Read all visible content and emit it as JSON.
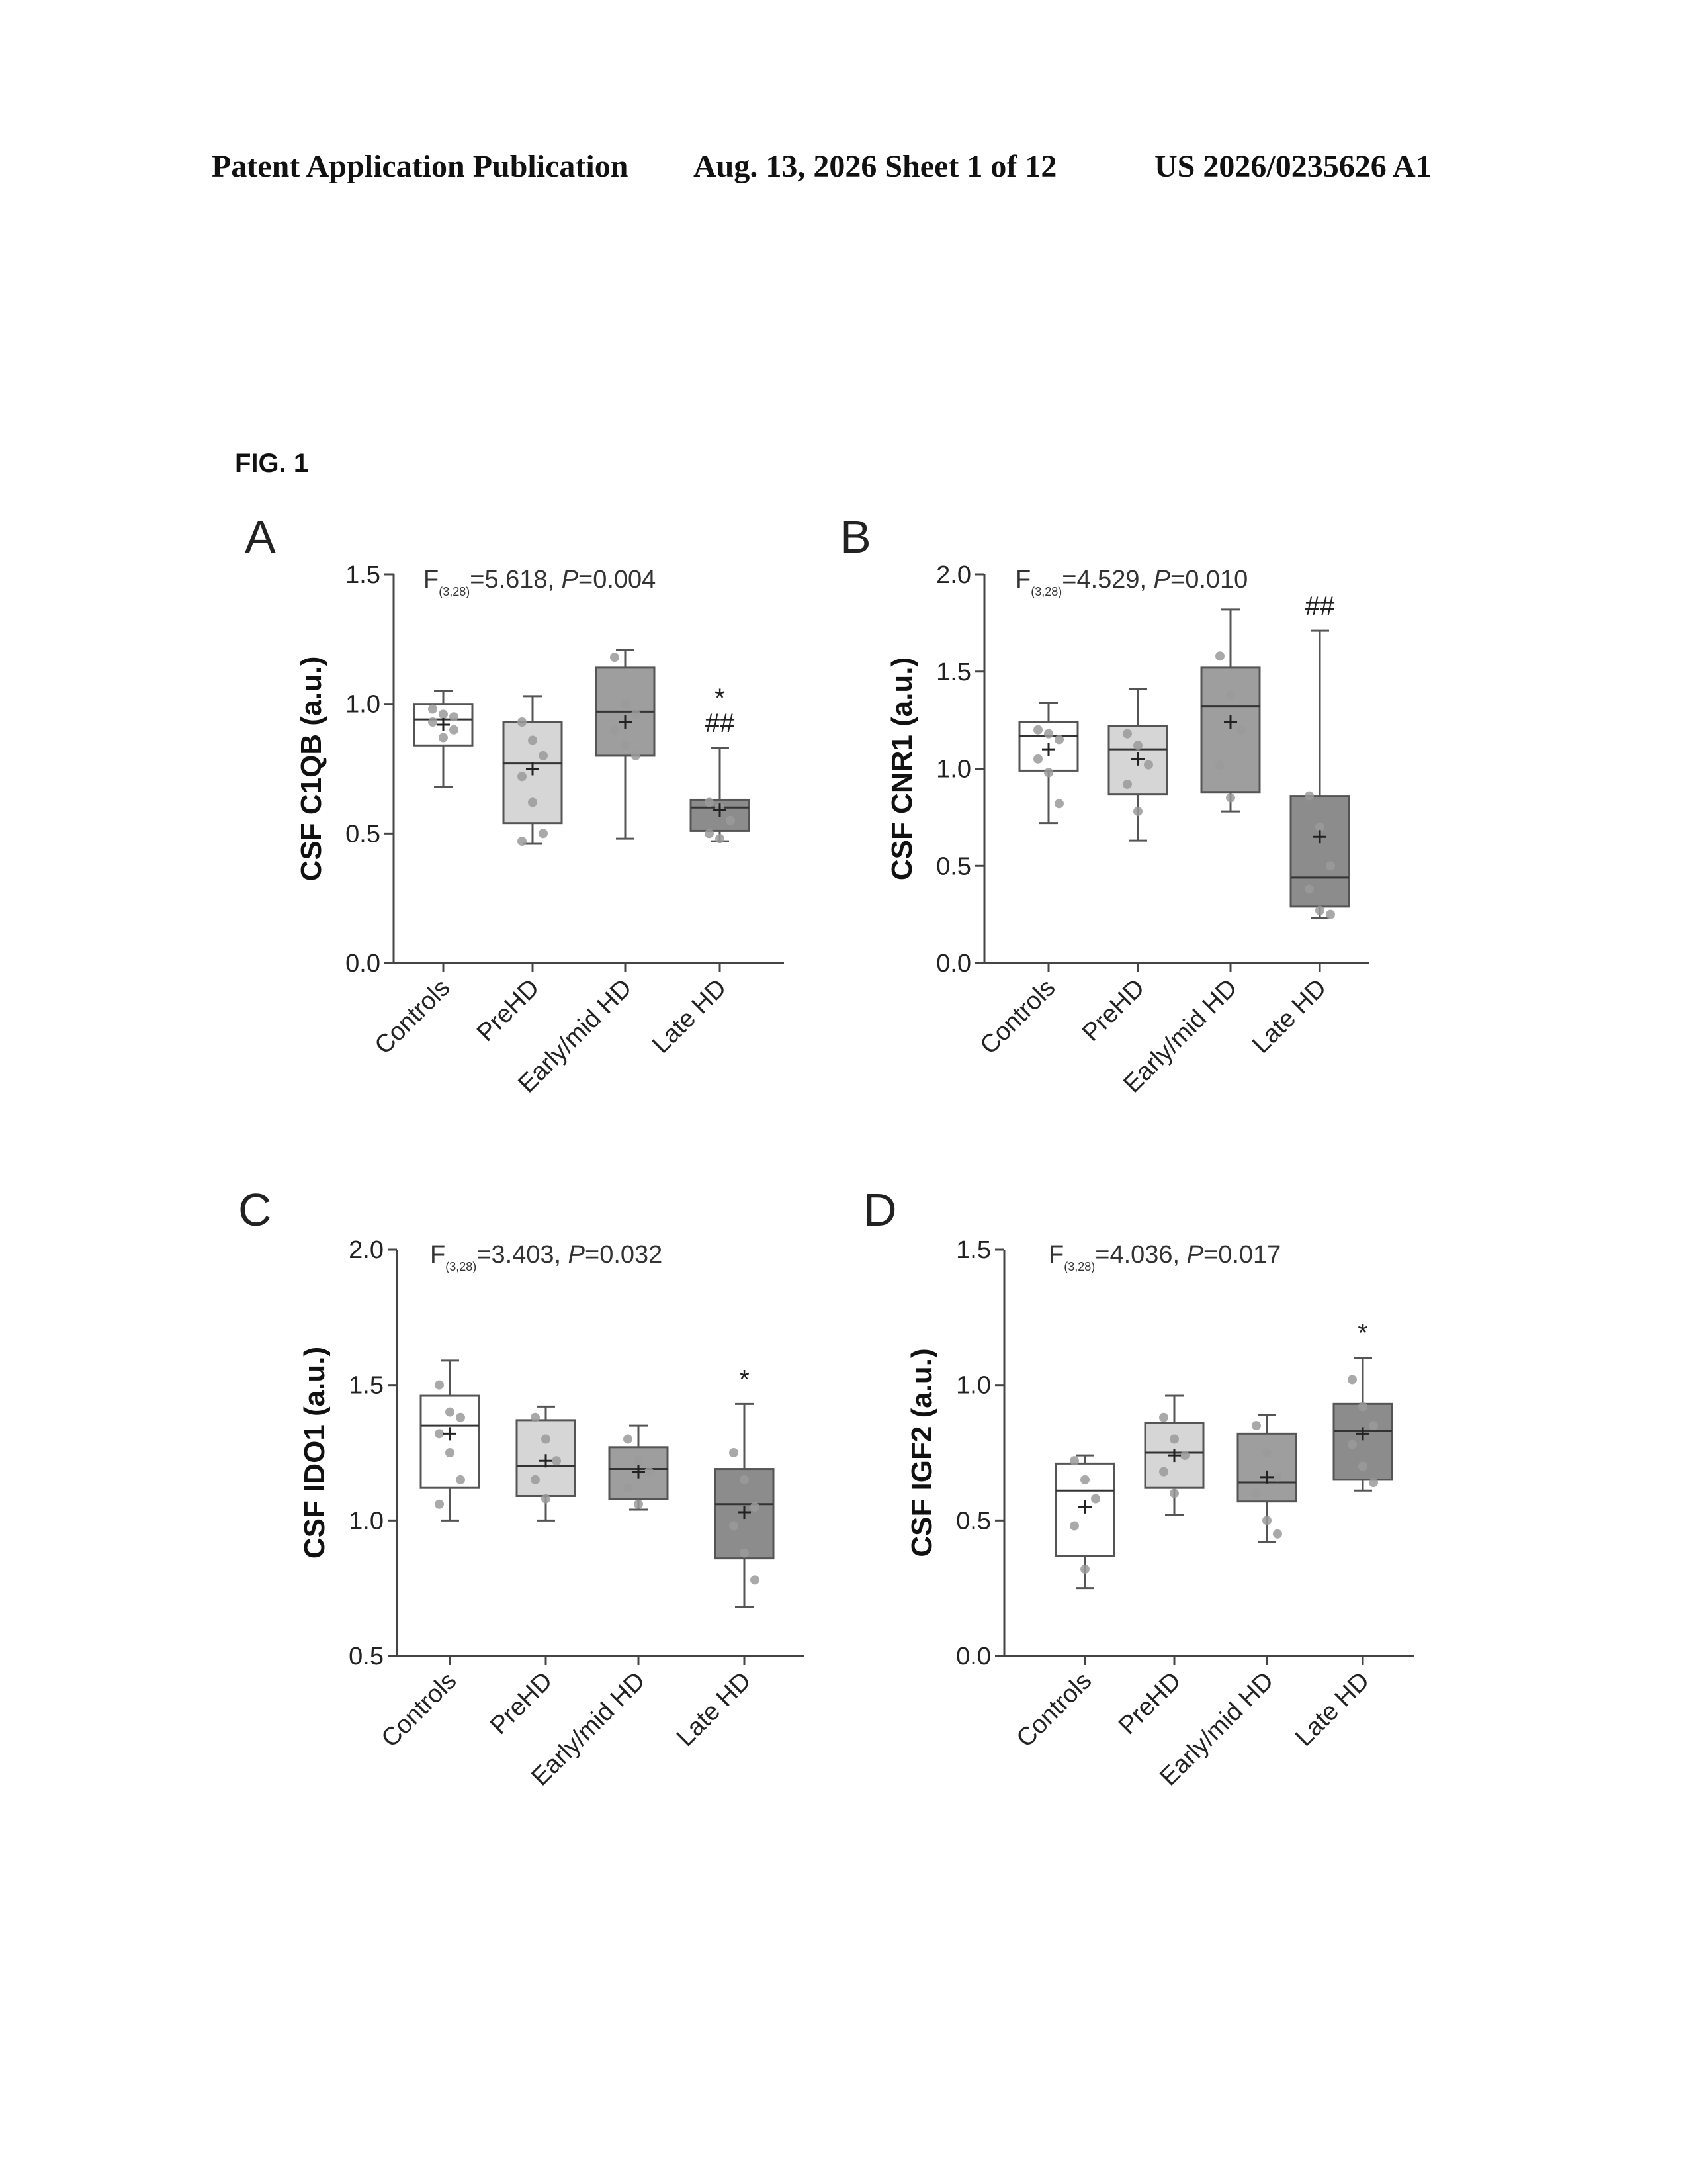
{
  "header": {
    "publication": "Patent Application Publication",
    "date_sheet": "Aug. 13, 2026  Sheet 1 of 12",
    "number": "US 2026/0235626 A1"
  },
  "figure_label": "FIG. 1",
  "colors": {
    "Controls": "#ffffff",
    "PreHD": "#d6d6d6",
    "Early/mid HD": "#9e9e9e",
    "Late HD": "#8c8c8c",
    "points": "#9a9a9a",
    "stroke": "#555555"
  },
  "chart_data": [
    {
      "panel": "A",
      "type": "box",
      "ylabel": "CSF C1QB (a.u.)",
      "stat": {
        "F": "F",
        "sub": "(3,28)",
        "mid": "=5.618, ",
        "P": "P",
        "val": "=0.004"
      },
      "ylim": [
        0,
        1.5
      ],
      "yticks": [
        0.0,
        0.5,
        1.0,
        1.5
      ],
      "ytick_labels": [
        "0.0",
        "0.5",
        "1.0",
        "1.5"
      ],
      "categories": [
        "Controls",
        "PreHD",
        "Early/mid HD",
        "Late HD"
      ],
      "boxes": [
        {
          "min": 0.68,
          "q1": 0.84,
          "median": 0.94,
          "q3": 1.0,
          "max": 1.05,
          "mean": 0.92,
          "points": [
            0.93,
            0.96,
            0.9,
            0.98,
            0.87,
            0.95
          ]
        },
        {
          "min": 0.46,
          "q1": 0.54,
          "median": 0.77,
          "q3": 0.93,
          "max": 1.03,
          "mean": 0.75,
          "points": [
            0.93,
            0.86,
            0.8,
            0.72,
            0.62,
            0.5,
            0.47
          ]
        },
        {
          "min": 0.48,
          "q1": 0.8,
          "median": 0.97,
          "q3": 1.14,
          "max": 1.21,
          "mean": 0.93,
          "points": [
            1.18,
            1.0,
            0.96,
            0.9,
            0.84,
            0.8
          ]
        },
        {
          "min": 0.47,
          "q1": 0.51,
          "median": 0.6,
          "q3": 0.63,
          "max": 0.83,
          "mean": 0.59,
          "points": [
            0.62,
            0.6,
            0.55,
            0.5,
            0.48
          ]
        }
      ],
      "annotations": [
        {
          "category": "Late HD",
          "lines": [
            "*",
            "##"
          ]
        }
      ]
    },
    {
      "panel": "B",
      "type": "box",
      "ylabel": "CSF CNR1 (a.u.)",
      "stat": {
        "F": "F",
        "sub": "(3,28)",
        "mid": "=4.529, ",
        "P": "P",
        "val": "=0.010"
      },
      "ylim": [
        0,
        2.0
      ],
      "yticks": [
        0.0,
        0.5,
        1.0,
        1.5,
        2.0
      ],
      "ytick_labels": [
        "0.0",
        "0.5",
        "1.0",
        "1.5",
        "2.0"
      ],
      "categories": [
        "Controls",
        "PreHD",
        "Early/mid HD",
        "Late HD"
      ],
      "boxes": [
        {
          "min": 0.72,
          "q1": 0.99,
          "median": 1.17,
          "q3": 1.24,
          "max": 1.34,
          "mean": 1.1,
          "points": [
            1.2,
            1.18,
            1.15,
            1.05,
            0.98,
            0.82
          ]
        },
        {
          "min": 0.63,
          "q1": 0.87,
          "median": 1.1,
          "q3": 1.22,
          "max": 1.41,
          "mean": 1.05,
          "points": [
            1.18,
            1.12,
            1.02,
            0.92,
            0.78
          ]
        },
        {
          "min": 0.78,
          "q1": 0.88,
          "median": 1.32,
          "q3": 1.52,
          "max": 1.82,
          "mean": 1.24,
          "points": [
            1.58,
            1.38,
            1.2,
            1.02,
            0.85
          ]
        },
        {
          "min": 0.23,
          "q1": 0.29,
          "median": 0.44,
          "q3": 0.86,
          "max": 1.71,
          "mean": 0.65,
          "points": [
            0.86,
            0.7,
            0.5,
            0.38,
            0.27,
            0.25
          ]
        }
      ],
      "annotations": [
        {
          "category": "Late HD",
          "lines": [
            "##"
          ]
        }
      ]
    },
    {
      "panel": "C",
      "type": "box",
      "ylabel": "CSF IDO1 (a.u.)",
      "stat": {
        "F": "F",
        "sub": "(3,28)",
        "mid": "=3.403, ",
        "P": "P",
        "val": "=0.032"
      },
      "ylim": [
        0.5,
        2.0
      ],
      "yticks": [
        0.5,
        1.0,
        1.5,
        2.0
      ],
      "ytick_labels": [
        "0.5",
        "1.0",
        "1.5",
        "2.0"
      ],
      "categories": [
        "Controls",
        "PreHD",
        "Early/mid HD",
        "Late HD"
      ],
      "boxes": [
        {
          "min": 1.0,
          "q1": 1.12,
          "median": 1.35,
          "q3": 1.46,
          "max": 1.59,
          "mean": 1.32,
          "points": [
            1.5,
            1.4,
            1.38,
            1.32,
            1.25,
            1.15,
            1.06
          ]
        },
        {
          "min": 1.0,
          "q1": 1.09,
          "median": 1.2,
          "q3": 1.37,
          "max": 1.42,
          "mean": 1.22,
          "points": [
            1.38,
            1.3,
            1.22,
            1.15,
            1.08
          ]
        },
        {
          "min": 1.04,
          "q1": 1.08,
          "median": 1.19,
          "q3": 1.27,
          "max": 1.35,
          "mean": 1.18,
          "points": [
            1.3,
            1.22,
            1.18,
            1.12,
            1.06
          ]
        },
        {
          "min": 0.68,
          "q1": 0.86,
          "median": 1.06,
          "q3": 1.19,
          "max": 1.43,
          "mean": 1.03,
          "points": [
            1.25,
            1.15,
            1.05,
            0.98,
            0.88,
            0.78
          ]
        }
      ],
      "annotations": [
        {
          "category": "Late HD",
          "lines": [
            "*"
          ]
        }
      ]
    },
    {
      "panel": "D",
      "type": "box",
      "ylabel": "CSF IGF2 (a.u.)",
      "stat": {
        "F": "F",
        "sub": "(3,28)",
        "mid": "=4.036, ",
        "P": "P",
        "val": "=0.017"
      },
      "ylim": [
        0,
        1.5
      ],
      "yticks": [
        0.0,
        0.5,
        1.0,
        1.5
      ],
      "ytick_labels": [
        "0.0",
        "0.5",
        "1.0",
        "1.5"
      ],
      "categories": [
        "Controls",
        "PreHD",
        "Early/mid HD",
        "Late HD"
      ],
      "boxes": [
        {
          "min": 0.25,
          "q1": 0.37,
          "median": 0.61,
          "q3": 0.71,
          "max": 0.74,
          "mean": 0.55,
          "points": [
            0.72,
            0.65,
            0.58,
            0.48,
            0.32
          ]
        },
        {
          "min": 0.52,
          "q1": 0.62,
          "median": 0.75,
          "q3": 0.86,
          "max": 0.96,
          "mean": 0.74,
          "points": [
            0.88,
            0.8,
            0.74,
            0.68,
            0.6
          ]
        },
        {
          "min": 0.42,
          "q1": 0.57,
          "median": 0.64,
          "q3": 0.82,
          "max": 0.89,
          "mean": 0.66,
          "points": [
            0.85,
            0.75,
            0.66,
            0.6,
            0.5,
            0.45
          ]
        },
        {
          "min": 0.61,
          "q1": 0.65,
          "median": 0.83,
          "q3": 0.93,
          "max": 1.1,
          "mean": 0.82,
          "points": [
            1.02,
            0.92,
            0.85,
            0.78,
            0.7,
            0.64
          ]
        }
      ],
      "annotations": [
        {
          "category": "Late HD",
          "lines": [
            "*"
          ]
        }
      ]
    }
  ]
}
